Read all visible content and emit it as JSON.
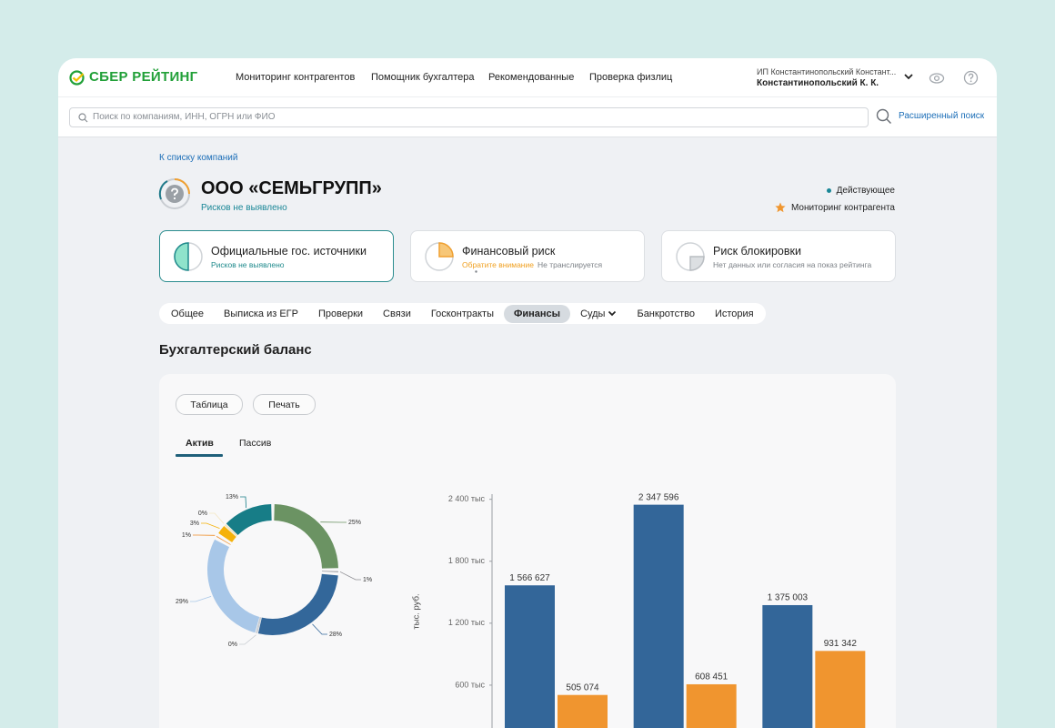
{
  "header": {
    "logo": "СБЕР РЕЙТИНГ",
    "nav": [
      "Мониторинг контрагентов",
      "Помощник бухгалтера",
      "Рекомендованные",
      "Проверка физлиц"
    ],
    "user": {
      "org": "ИП Константинопольский Констант...",
      "name": "Константинопольский К. К."
    }
  },
  "search": {
    "placeholder": "Поиск по компаниям, ИНН, ОГРН или ФИО",
    "advanced": "Расширенный поиск"
  },
  "breadcrumb": "К списку компаний",
  "company": {
    "name": "ООО «СЕМЬГРУПП»",
    "risk": "Рисков не выявлено",
    "status": "Действующее",
    "monitoring": "Мониторинг контрагента"
  },
  "cards": [
    {
      "title": "Официальные гос. источники",
      "subtitle": "Рисков не выявлено"
    },
    {
      "title": "Финансовый риск",
      "subtitle": "Обратите внимание",
      "note": "Не транслируется"
    },
    {
      "title": "Риск блокировки",
      "subtitle": "Нет данных или согласия на показ рейтинга"
    }
  ],
  "tabs": {
    "items": [
      "Общее",
      "Выписка из ЕГР",
      "Проверки",
      "Связи",
      "Госконтракты",
      "Финансы",
      "Суды",
      "Банкротство",
      "История"
    ],
    "active": 5
  },
  "section_title": "Бухгалтерский баланс",
  "buttons": [
    "Таблица",
    "Печать"
  ],
  "subtabs": {
    "items": [
      "Актив",
      "Пассив"
    ],
    "active": 0
  },
  "chart_data": [
    {
      "type": "pie",
      "donut": true,
      "values": [
        25,
        1,
        28,
        0,
        29,
        1,
        3,
        0,
        13
      ],
      "value_labels": [
        "25%",
        "1%",
        "28%",
        "0%",
        "29%",
        "1%",
        "3%",
        "0%",
        "13%"
      ],
      "colors": [
        "#6b9363",
        "#8e8e93",
        "#33679a",
        "#c9cdd2",
        "#a8c7e8",
        "#ef8f2a",
        "#f5b20a",
        "#f4e6c2",
        "#177d87"
      ]
    },
    {
      "type": "bar",
      "y_label": "тыс. руб.",
      "categories": [
        null,
        null,
        null
      ],
      "series": [
        {
          "color": "#336699",
          "values": [
            1566.627,
            2347.596,
            1375.003
          ],
          "value_labels": [
            "1 566 627",
            "2 347 596",
            "1 375 003"
          ]
        },
        {
          "color": "#f0952f",
          "values": [
            505.074,
            608.451,
            931.342
          ],
          "value_labels": [
            "505 074",
            "608 451",
            "931 342"
          ]
        }
      ],
      "ylim": [
        0,
        2450
      ],
      "yticks": [
        {
          "value": 600,
          "label": "600 тыс"
        },
        {
          "value": 1200,
          "label": "1 200 тыс"
        },
        {
          "value": 1800,
          "label": "1 800 тыс"
        },
        {
          "value": 2400,
          "label": "2 400 тыс"
        }
      ]
    }
  ]
}
